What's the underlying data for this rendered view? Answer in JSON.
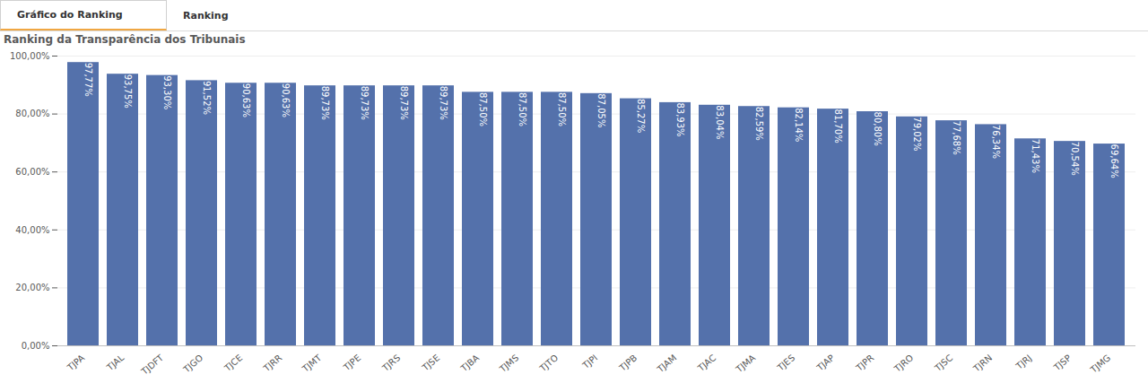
{
  "tabs": [
    "Gráfico do Ranking",
    "Ranking"
  ],
  "chart_data": {
    "type": "bar",
    "title": "Ranking da Transparência dos Tribunais",
    "categories": [
      "TJPA",
      "TJAL",
      "TJDFT",
      "TJGO",
      "TJCE",
      "TJRR",
      "TJMT",
      "TJPE",
      "TJRS",
      "TJSE",
      "TJBA",
      "TJMS",
      "TJTO",
      "TJPI",
      "TJPB",
      "TJAM",
      "TJAC",
      "TJMA",
      "TJES",
      "TJAP",
      "TJPR",
      "TJRO",
      "TJSC",
      "TJRN",
      "TJRJ",
      "TJSP",
      "TJMG"
    ],
    "values": [
      97.77,
      93.75,
      93.3,
      91.52,
      90.63,
      90.63,
      89.73,
      89.73,
      89.73,
      89.73,
      87.5,
      87.5,
      87.5,
      87.05,
      85.27,
      83.93,
      83.04,
      82.59,
      82.14,
      81.7,
      80.8,
      79.02,
      77.68,
      76.34,
      71.43,
      70.54,
      69.64
    ],
    "value_labels": [
      "97,77%",
      "93,75%",
      "93,30%",
      "91,52%",
      "90,63%",
      "90,63%",
      "89,73%",
      "89,73%",
      "89,73%",
      "89,73%",
      "87,50%",
      "87,50%",
      "87,50%",
      "87,05%",
      "85,27%",
      "83,93%",
      "83,04%",
      "82,59%",
      "82,14%",
      "81,70%",
      "80,80%",
      "79,02%",
      "77,68%",
      "76,34%",
      "71,43%",
      "70,54%",
      "69,64%"
    ],
    "color": "#5471ab",
    "ylim": [
      0,
      100
    ],
    "yticks": [
      {
        "value": 0,
        "label": "0,00%"
      },
      {
        "value": 20,
        "label": "20,00%"
      },
      {
        "value": 40,
        "label": "40,00%"
      },
      {
        "value": 60,
        "label": "60,00%"
      },
      {
        "value": 80,
        "label": "80,00%"
      },
      {
        "value": 100,
        "label": "100,00%"
      }
    ],
    "grid": true,
    "data_labels": true
  }
}
